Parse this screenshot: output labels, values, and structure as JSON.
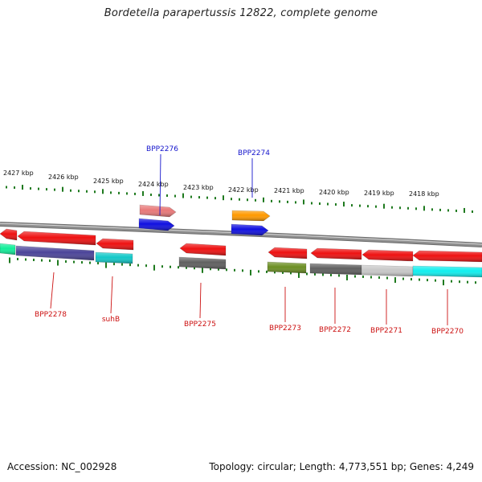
{
  "title": "Bordetella parapertussis 12822, complete genome",
  "footer": {
    "accession": "Accession: NC_002928",
    "summary": "Topology: circular; Length: 4,773,551 bp; Genes: 4,249"
  },
  "colors": {
    "backbone": "#909090",
    "tick": "#1f7a1f",
    "label_forward": "#1515cc",
    "label_reverse": "#cc1111"
  },
  "ruler": {
    "unit": "kbp",
    "labels": [
      {
        "kbp": 2427,
        "text": "2427 kbp"
      },
      {
        "kbp": 2426,
        "text": "2426 kbp"
      },
      {
        "kbp": 2425,
        "text": "2425 kbp"
      },
      {
        "kbp": 2424,
        "text": "2424 kbp"
      },
      {
        "kbp": 2423,
        "text": "2423 kbp"
      },
      {
        "kbp": 2422,
        "text": "2422 kbp"
      },
      {
        "kbp": 2421,
        "text": "2421 kbp"
      },
      {
        "kbp": 2420,
        "text": "2420 kbp"
      },
      {
        "kbp": 2419,
        "text": "2419 kbp"
      },
      {
        "kbp": 2418,
        "text": "2418 kbp"
      }
    ]
  },
  "genes": [
    {
      "label": "BPP2276",
      "strand": "+",
      "label_color": "#1515cc",
      "colors": [
        "#e87878",
        "#1010e0"
      ]
    },
    {
      "label": "BPP2274",
      "strand": "+",
      "label_color": "#1515cc",
      "colors": [
        "#ff9900",
        "#1010e0"
      ]
    },
    {
      "label": "BPP2278",
      "strand": "-",
      "label_color": "#cc1111",
      "colors": [
        "#ee1111",
        "#4b4499"
      ]
    },
    {
      "label": "suhB",
      "strand": "-",
      "label_color": "#cc1111",
      "colors": [
        "#ee1111",
        "#11c8c8"
      ]
    },
    {
      "label": "BPP2275",
      "strand": "-",
      "label_color": "#cc1111",
      "colors": [
        "#ee1111",
        "#606060"
      ]
    },
    {
      "label": "BPP2273",
      "strand": "-",
      "label_color": "#cc1111",
      "colors": [
        "#ee1111",
        "#6b8e23"
      ]
    },
    {
      "label": "BPP2272",
      "strand": "-",
      "label_color": "#cc1111",
      "colors": [
        "#ee1111",
        "#606060"
      ]
    },
    {
      "label": "BPP2271",
      "strand": "-",
      "label_color": "#cc1111",
      "colors": [
        "#ee1111",
        "#c8c8c8"
      ]
    },
    {
      "label": "BPP2270",
      "strand": "-",
      "label_color": "#cc1111",
      "colors": [
        "#ee1111",
        "#11eeee"
      ]
    },
    {
      "strand": "-",
      "colors": [
        "#ee1111",
        "#11ee99"
      ]
    }
  ]
}
